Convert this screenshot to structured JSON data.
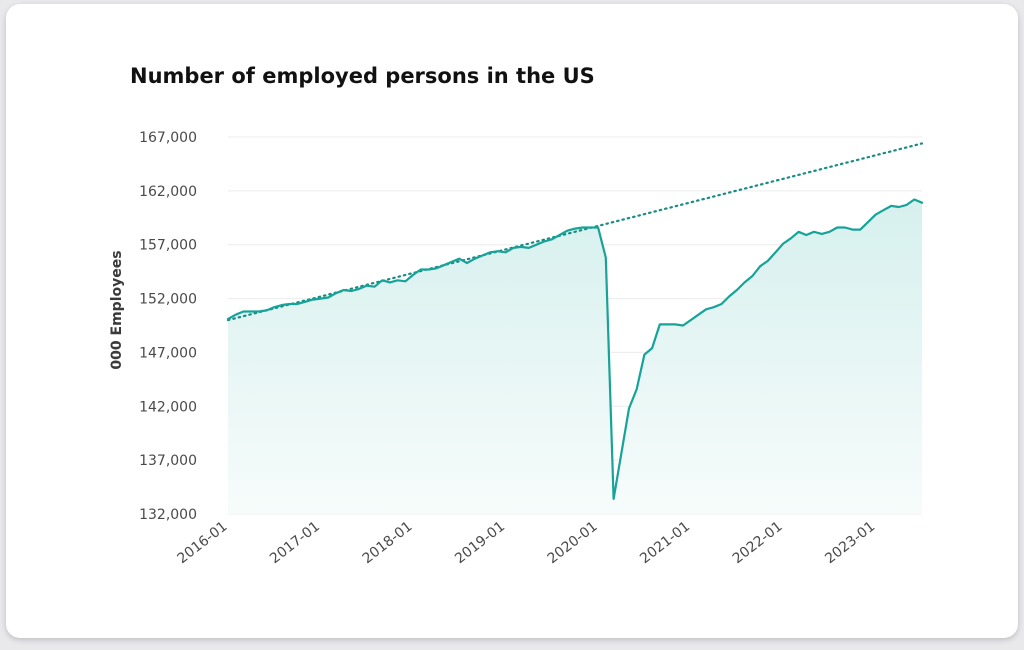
{
  "chart_data": {
    "type": "area",
    "title": "Number of employed persons in the US",
    "ylabel": "000 Employees",
    "xlabel": "",
    "ylim": [
      132000,
      167000
    ],
    "yticks": [
      132000,
      137000,
      142000,
      147000,
      152000,
      157000,
      162000,
      167000
    ],
    "ytick_labels": [
      "132,000",
      "137,000",
      "142,000",
      "147,000",
      "152,000",
      "157,000",
      "162,000",
      "167,000"
    ],
    "xticks": [
      "2016-01",
      "2017-01",
      "2018-01",
      "2019-01",
      "2020-01",
      "2021-01",
      "2022-01",
      "2023-01"
    ],
    "x_unit": "month",
    "x": [
      "2016-01",
      "2016-02",
      "2016-03",
      "2016-04",
      "2016-05",
      "2016-06",
      "2016-07",
      "2016-08",
      "2016-09",
      "2016-10",
      "2016-11",
      "2016-12",
      "2017-01",
      "2017-02",
      "2017-03",
      "2017-04",
      "2017-05",
      "2017-06",
      "2017-07",
      "2017-08",
      "2017-09",
      "2017-10",
      "2017-11",
      "2017-12",
      "2018-01",
      "2018-02",
      "2018-03",
      "2018-04",
      "2018-05",
      "2018-06",
      "2018-07",
      "2018-08",
      "2018-09",
      "2018-10",
      "2018-11",
      "2018-12",
      "2019-01",
      "2019-02",
      "2019-03",
      "2019-04",
      "2019-05",
      "2019-06",
      "2019-07",
      "2019-08",
      "2019-09",
      "2019-10",
      "2019-11",
      "2019-12",
      "2020-01",
      "2020-02",
      "2020-03",
      "2020-04",
      "2020-05",
      "2020-06",
      "2020-07",
      "2020-08",
      "2020-09",
      "2020-10",
      "2020-11",
      "2020-12",
      "2021-01",
      "2021-02",
      "2021-03",
      "2021-04",
      "2021-05",
      "2021-06",
      "2021-07",
      "2021-08",
      "2021-09",
      "2021-10",
      "2021-11",
      "2021-12",
      "2022-01",
      "2022-02",
      "2022-03",
      "2022-04",
      "2022-05",
      "2022-06",
      "2022-07",
      "2022-08",
      "2022-09",
      "2022-10",
      "2022-11",
      "2022-12",
      "2023-01",
      "2023-02",
      "2023-03",
      "2023-04",
      "2023-05",
      "2023-06",
      "2023-07"
    ],
    "series": [
      {
        "name": "",
        "values": [
          150100,
          150500,
          150800,
          150800,
          150800,
          150900,
          151200,
          151400,
          151500,
          151500,
          151700,
          151900,
          152000,
          152100,
          152500,
          152800,
          152700,
          152900,
          153200,
          153100,
          153700,
          153500,
          153700,
          153600,
          154200,
          154700,
          154700,
          154800,
          155100,
          155400,
          155700,
          155300,
          155700,
          156000,
          156300,
          156400,
          156300,
          156700,
          156800,
          156700,
          157000,
          157300,
          157500,
          157900,
          158300,
          158500,
          158600,
          158600,
          158600,
          155800,
          133400,
          137600,
          141800,
          143600,
          146800,
          147400,
          149600,
          149600,
          149600,
          149500,
          150000,
          150500,
          151000,
          151200,
          151500,
          152200,
          152800,
          153500,
          154100,
          155000,
          155500,
          156300,
          157100,
          157600,
          158200,
          157900,
          158200,
          158000,
          158200,
          158600,
          158600,
          158400,
          158400,
          159100,
          159800,
          160200,
          160600,
          160500,
          160700,
          161200,
          160900
        ]
      }
    ],
    "trendline": {
      "style": "dotted",
      "from": {
        "x": "2016-01",
        "y": 150000
      },
      "to": {
        "x": "2023-07",
        "y": 166400
      }
    },
    "grid": true,
    "legend": "none",
    "colors": {
      "line": "#17a398",
      "fill_top": "#d6f0ee",
      "fill_bottom": "#f7fcfb",
      "trend": "#1b8c85",
      "grid": "#ececec"
    }
  }
}
